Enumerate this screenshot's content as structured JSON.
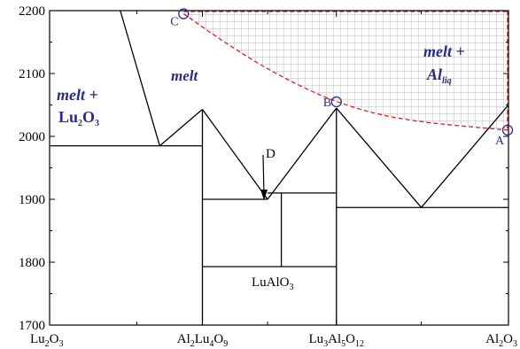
{
  "colors": {
    "accent": "#2a2a8c",
    "dashed_curve": "#dd2222",
    "grid_hatch": "#b8b8b8",
    "lines": "#000000"
  },
  "chart_data": {
    "type": "phase-diagram",
    "ylim": [
      1700,
      2200
    ],
    "y_ticks": [
      {
        "value": 2200,
        "label": "2200"
      },
      {
        "value": 2100,
        "label": "2100"
      },
      {
        "value": 2000,
        "label": "2000"
      },
      {
        "value": 1900,
        "label": "1900"
      },
      {
        "value": 1800,
        "label": "1800"
      },
      {
        "value": 1700,
        "label": "1700"
      }
    ],
    "x_ticks": [
      {
        "key": "lu2o3",
        "pos": 0.0,
        "base": [
          "Lu",
          "2",
          "O",
          "3"
        ]
      },
      {
        "key": "al2lu4o9",
        "pos": 0.333,
        "base": [
          "Al",
          "2",
          "Lu",
          "4",
          "O",
          "9"
        ]
      },
      {
        "key": "lu3al5o12",
        "pos": 0.625,
        "base": [
          "Lu",
          "3",
          "Al",
          "5",
          "O",
          "12"
        ]
      },
      {
        "key": "al2o3",
        "pos": 1.0,
        "base": [
          "Al",
          "2",
          "O",
          "3"
        ]
      }
    ],
    "minor_x_ticks": [
      0.19,
      0.475,
      0.81
    ],
    "phase_labels": {
      "melt": "melt",
      "melt_lu2o3_line1": "melt +",
      "melt_lu2o3_line2": [
        "Lu",
        "2",
        "O",
        "3"
      ],
      "melt_al_line1": "melt +",
      "melt_al_line2": [
        "Al",
        "liq"
      ],
      "lualo3": [
        "LuAlO",
        "3"
      ]
    },
    "points": [
      {
        "label": "A",
        "x": 1.0,
        "y": 2010
      },
      {
        "label": "B",
        "x": 0.625,
        "y": 2055
      },
      {
        "label": "C",
        "x": 0.292,
        "y": 2195
      },
      {
        "label": "D",
        "x": 0.475,
        "y": 1900
      }
    ],
    "liquidus_segments": [
      [
        [
          0.154,
          2200
        ],
        [
          0.24,
          1985
        ]
      ],
      [
        [
          0.24,
          1985
        ],
        [
          0.333,
          2043
        ]
      ],
      [
        [
          0.333,
          2043
        ],
        [
          0.475,
          1900
        ]
      ],
      [
        [
          0.475,
          1900
        ],
        [
          0.625,
          2045
        ]
      ],
      [
        [
          0.625,
          2045
        ],
        [
          0.81,
          1887
        ]
      ],
      [
        [
          0.81,
          1887
        ],
        [
          1.0,
          2050
        ]
      ]
    ],
    "solidus_lines": [
      [
        [
          0.0,
          1985
        ],
        [
          0.333,
          1985
        ]
      ],
      [
        [
          0.333,
          1900
        ],
        [
          0.475,
          1900
        ]
      ],
      [
        [
          0.475,
          1910
        ],
        [
          0.625,
          1910
        ]
      ],
      [
        [
          0.333,
          1793
        ],
        [
          0.625,
          1793
        ]
      ],
      [
        [
          0.625,
          1887
        ],
        [
          1.0,
          1887
        ]
      ]
    ],
    "vertical_lines": [
      [
        [
          0.333,
          1700
        ],
        [
          0.333,
          2043
        ]
      ],
      [
        [
          0.625,
          1700
        ],
        [
          0.625,
          2045
        ]
      ],
      [
        [
          0.505,
          1793
        ],
        [
          0.505,
          1910
        ]
      ]
    ],
    "dashed_curve": [
      [
        0.292,
        2195
      ],
      [
        0.38,
        2150
      ],
      [
        0.49,
        2100
      ],
      [
        0.625,
        2053
      ],
      [
        0.77,
        2025
      ],
      [
        1.0,
        2010
      ]
    ]
  }
}
